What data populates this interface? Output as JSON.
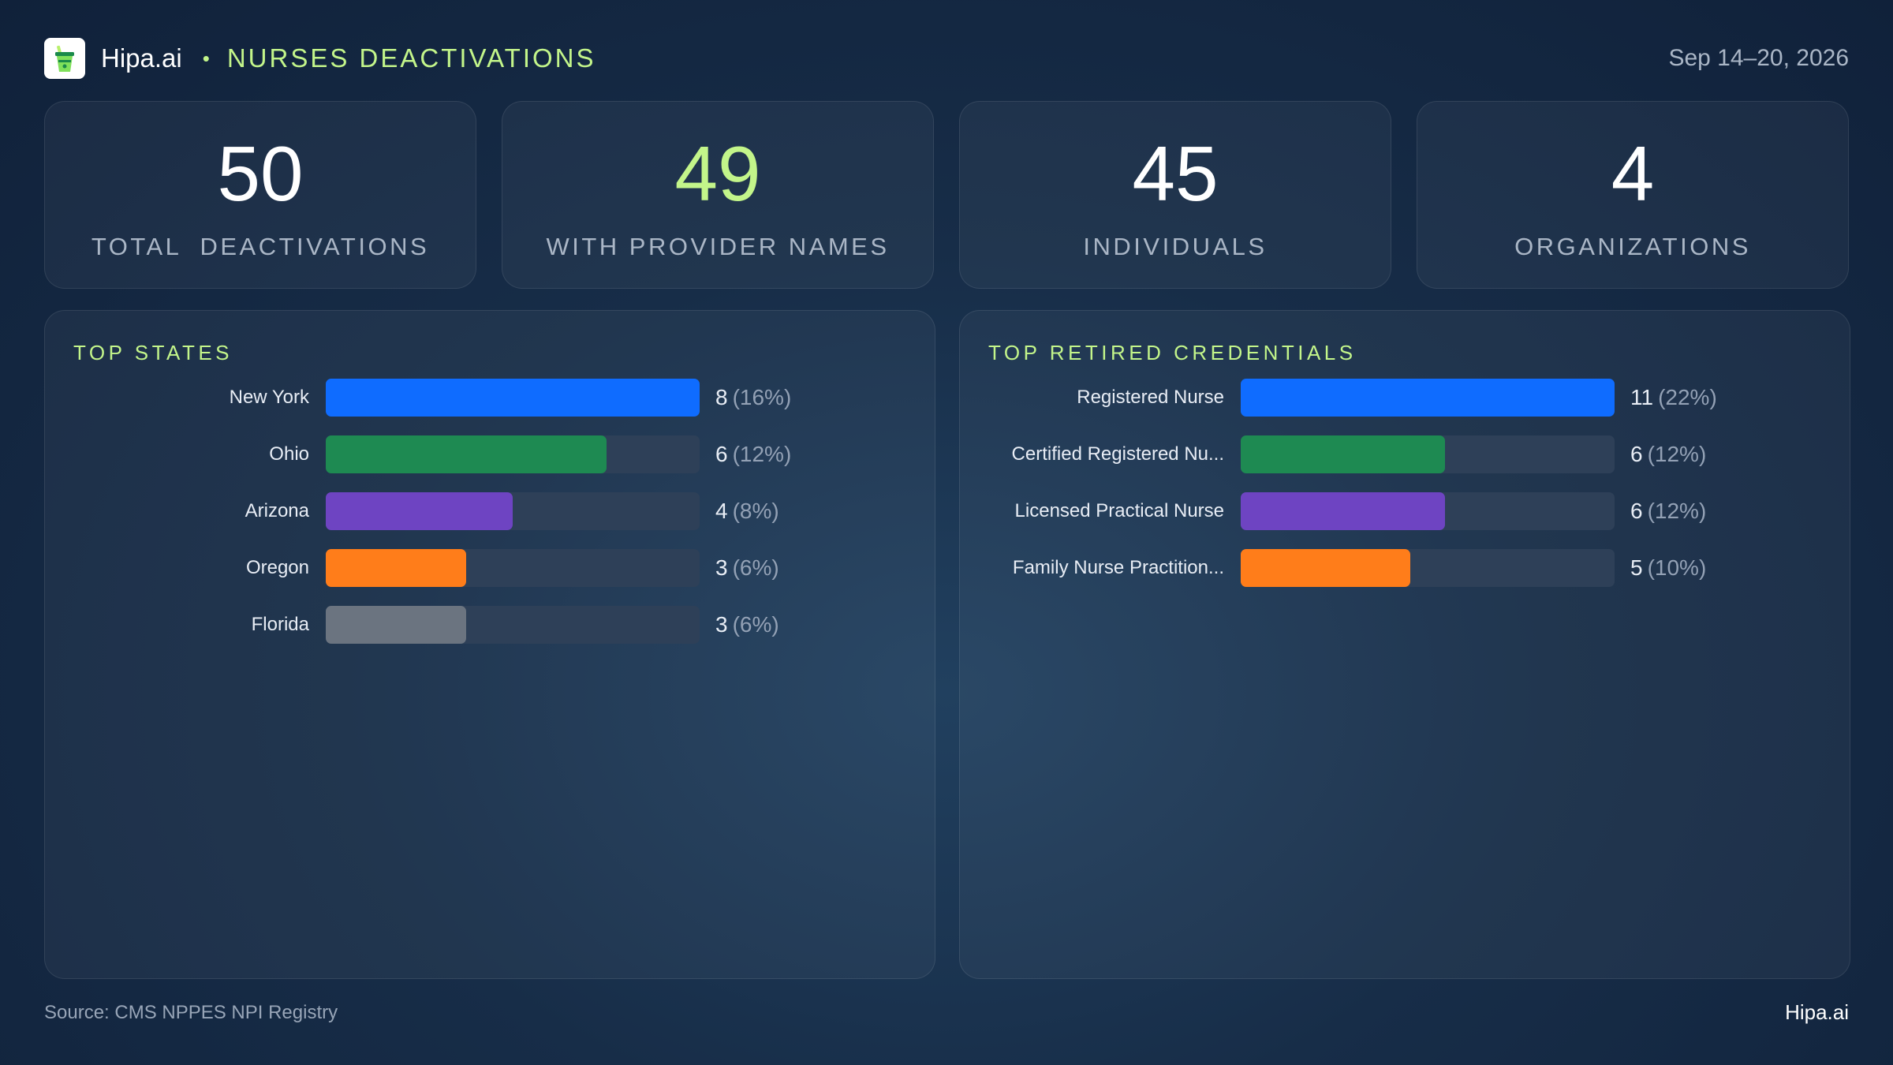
{
  "header": {
    "brand": "Hipa.ai",
    "separator": "•",
    "title": "NURSES DEACTIVATIONS",
    "date_range": "Sep 14–20, 2026",
    "logo_icon": "drink-cup-icon"
  },
  "stats": [
    {
      "value": "50",
      "label": "TOTAL  DEACTIVATIONS",
      "accent": false
    },
    {
      "value": "49",
      "label": "WITH PROVIDER NAMES",
      "accent": true
    },
    {
      "value": "45",
      "label": "INDIVIDUALS",
      "accent": false
    },
    {
      "value": "4",
      "label": "ORGANIZATIONS",
      "accent": false
    }
  ],
  "chart_data": [
    {
      "type": "bar",
      "orientation": "horizontal",
      "title": "TOP STATES",
      "categories": [
        "New York",
        "Ohio",
        "Arizona",
        "Oregon",
        "Florida"
      ],
      "values": [
        8,
        6,
        4,
        3,
        3
      ],
      "percent_labels": [
        "(16%)",
        "(12%)",
        "(8%)",
        "(6%)",
        "(6%)"
      ],
      "colors": [
        "#0f6cff",
        "#1e8a52",
        "#6e44c2",
        "#ff7d1a",
        "#6b7480"
      ]
    },
    {
      "type": "bar",
      "orientation": "horizontal",
      "title": "TOP RETIRED CREDENTIALS",
      "categories": [
        "Registered Nurse",
        "Certified Registered Nu...",
        "Licensed Practical Nurse",
        "Family Nurse Practition..."
      ],
      "values": [
        11,
        6,
        6,
        5
      ],
      "percent_labels": [
        "(22%)",
        "(12%)",
        "(12%)",
        "(10%)"
      ],
      "colors": [
        "#0f6cff",
        "#1e8a52",
        "#6e44c2",
        "#ff7d1a"
      ]
    }
  ],
  "footer": {
    "source": "Source: CMS NPPES NPI Registry",
    "brand": "Hipa.ai"
  },
  "colors": {
    "accent": "#c3f58a",
    "background": "#172d48"
  }
}
